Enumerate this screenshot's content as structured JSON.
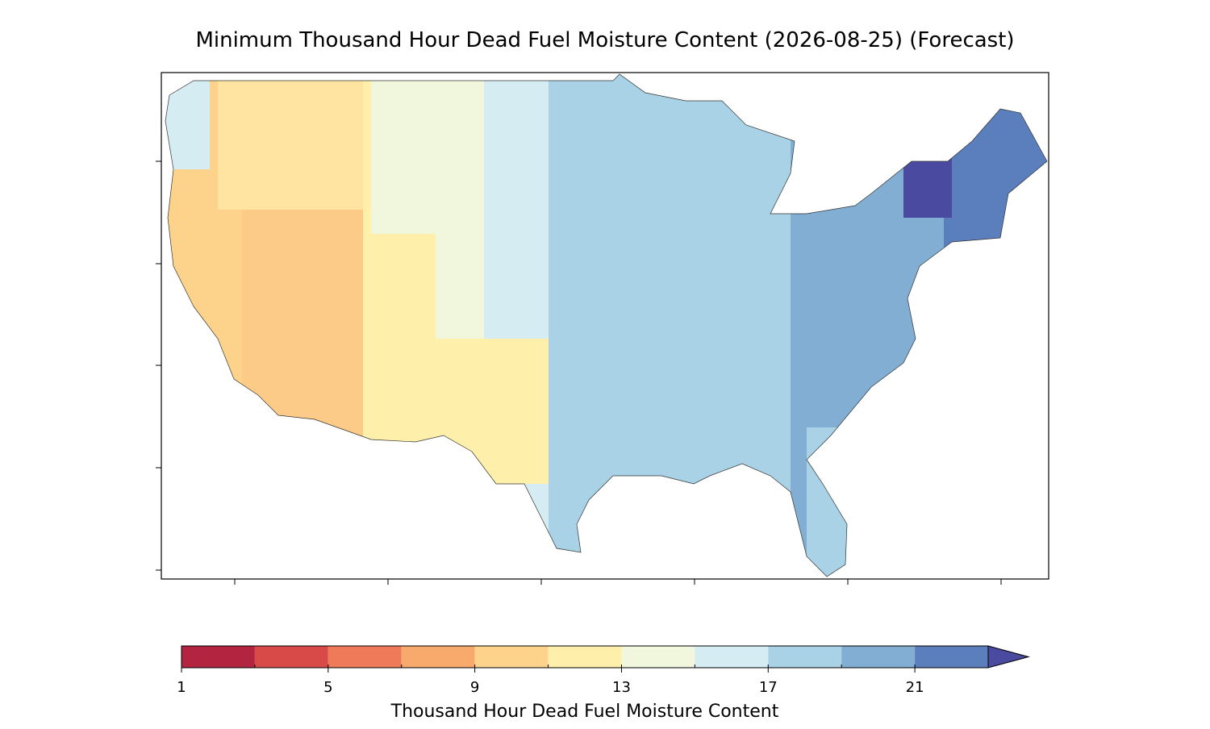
{
  "map": {
    "title": "Minimum Thousand Hour Dead Fuel Moisture Content (2026-08-25) (Forecast)",
    "colorbar": {
      "label": "Thousand Hour Dead Fuel Moisture Content",
      "levels": [
        1,
        3,
        5,
        7,
        9,
        11,
        13,
        15,
        17,
        19,
        21,
        23
      ],
      "colors": [
        "#b2243f",
        "#d84a48",
        "#ee7a5a",
        "#f7aa6c",
        "#fdd38b",
        "#fef0ab",
        "#f1f7dc",
        "#d5ecf2",
        "#a9d2e6",
        "#81aed2",
        "#5b7fbc"
      ],
      "extend_color": "#4a4ba0",
      "ticks": [
        1,
        5,
        9,
        13,
        17,
        21
      ]
    }
  }
}
